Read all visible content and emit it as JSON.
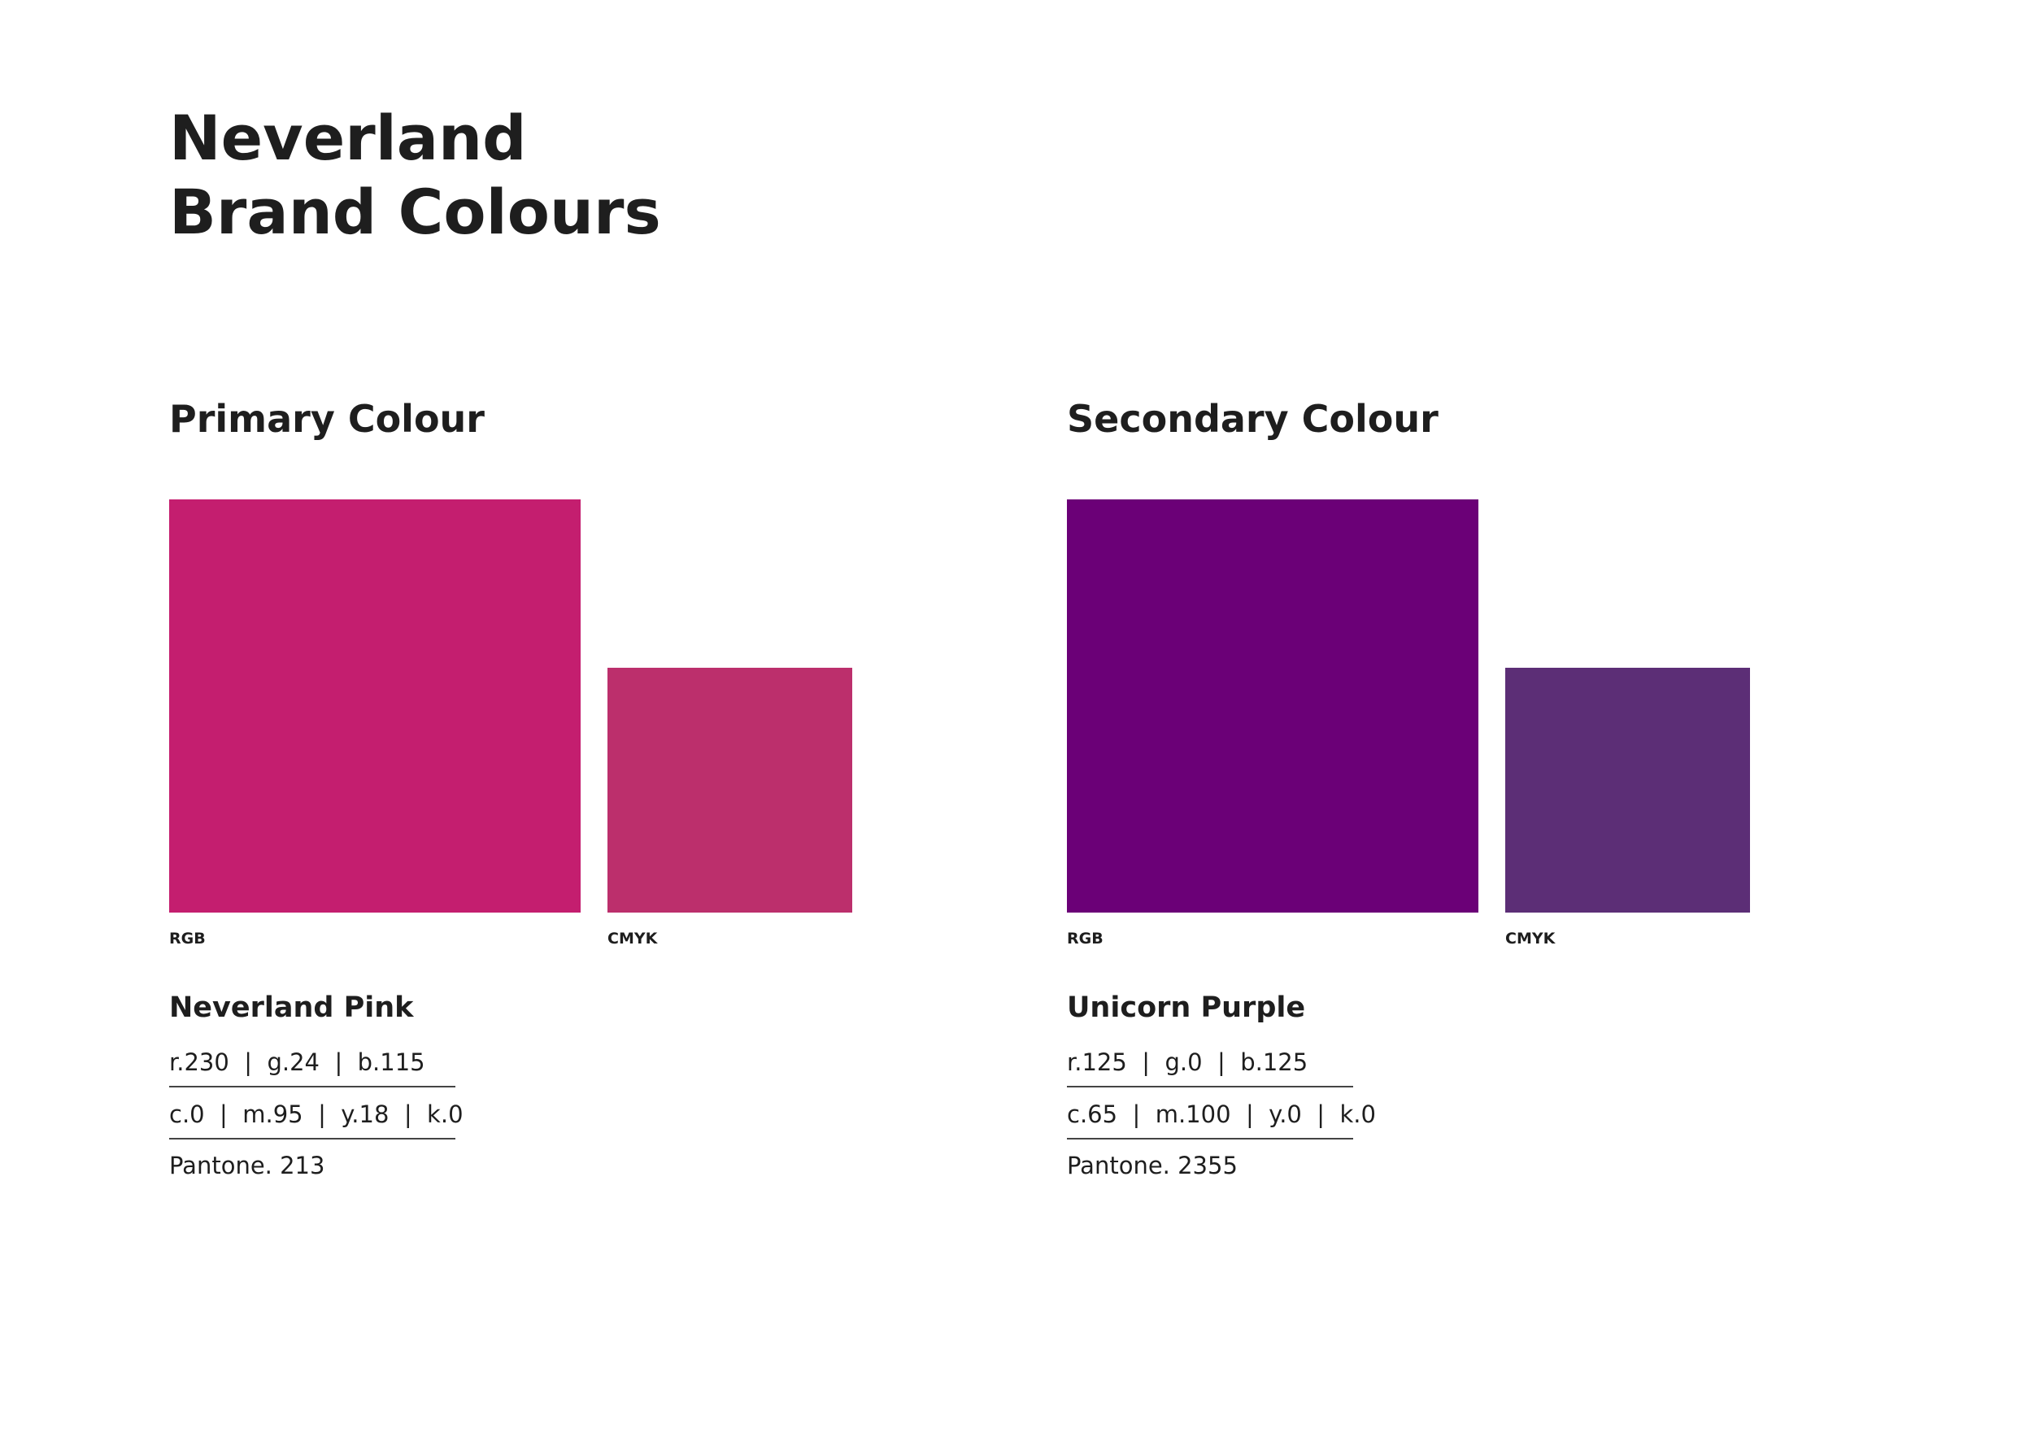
{
  "header": {
    "title_line1": "Neverland",
    "title_line2": "Brand Colours"
  },
  "sections": [
    {
      "heading": "Primary Colour",
      "rgb_label": "RGB",
      "cmyk_label": "CMYK",
      "rgb_color": "#c41e6f",
      "cmyk_color": "#bc2f6c",
      "name": "Neverland Pink",
      "rgb": "r.230  |  g.24  |  b.115",
      "cmyk": "c.0  |  m.95  |  y.18  |  k.0",
      "pantone": "Pantone. 213"
    },
    {
      "heading": "Secondary Colour",
      "rgb_label": "RGB",
      "cmyk_label": "CMYK",
      "rgb_color": "#6b0077",
      "cmyk_color": "#5c2e76",
      "name": "Unicorn Purple",
      "rgb": "r.125  |  g.0  |  b.125",
      "cmyk": "c.65  |  m.100  |  y.0  |  k.0",
      "pantone": "Pantone. 2355"
    }
  ]
}
